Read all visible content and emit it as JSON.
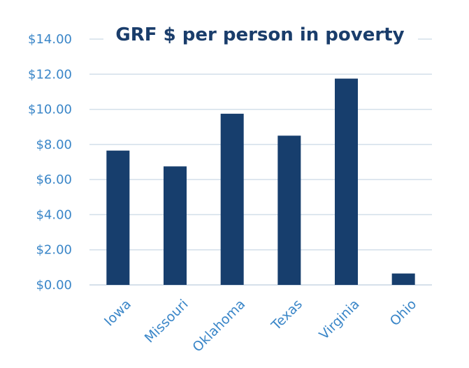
{
  "chart_data": {
    "type": "bar",
    "title": "GRF $ per person in poverty",
    "xlabel": "",
    "ylabel": "",
    "categories": [
      "Iowa",
      "Missouri",
      "Oklahoma",
      "Texas",
      "Virginia",
      "Ohio"
    ],
    "values": [
      7.65,
      6.75,
      9.75,
      8.5,
      11.75,
      0.65
    ],
    "ylim": [
      0,
      14
    ],
    "yticks": [
      "$0.00",
      "$2.00",
      "$4.00",
      "$6.00",
      "$8.00",
      "$10.00",
      "$12.00",
      "$14.00"
    ],
    "grid": true,
    "legend": "none",
    "colors": {
      "bar": "#173e6d",
      "tick_label": "#3a86c8",
      "title": "#1a3d6b",
      "grid": "#d3dfea"
    }
  }
}
